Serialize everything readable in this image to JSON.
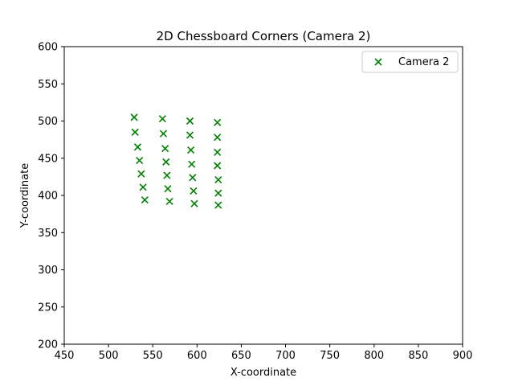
{
  "chart_data": {
    "type": "scatter",
    "title": "2D Chessboard Corners (Camera 2)",
    "xlabel": "X-coordinate",
    "ylabel": "Y-coordinate",
    "xlim": [
      450,
      900
    ],
    "ylim": [
      200,
      600
    ],
    "xticks": [
      450,
      500,
      550,
      600,
      650,
      700,
      750,
      800,
      850,
      900
    ],
    "yticks": [
      200,
      250,
      300,
      350,
      400,
      450,
      500,
      550,
      600
    ],
    "grid": false,
    "legend_position": "top-right",
    "series": [
      {
        "name": "Camera 2",
        "marker": "x",
        "color": "#008000",
        "points": [
          {
            "x": 529,
            "y": 505
          },
          {
            "x": 530,
            "y": 485
          },
          {
            "x": 533,
            "y": 465
          },
          {
            "x": 535,
            "y": 447
          },
          {
            "x": 537,
            "y": 429
          },
          {
            "x": 539,
            "y": 411
          },
          {
            "x": 541,
            "y": 394
          },
          {
            "x": 561,
            "y": 503
          },
          {
            "x": 562,
            "y": 483
          },
          {
            "x": 564,
            "y": 463
          },
          {
            "x": 565,
            "y": 445
          },
          {
            "x": 566,
            "y": 427
          },
          {
            "x": 567,
            "y": 409
          },
          {
            "x": 569,
            "y": 392
          },
          {
            "x": 592,
            "y": 500
          },
          {
            "x": 592,
            "y": 481
          },
          {
            "x": 593,
            "y": 461
          },
          {
            "x": 594,
            "y": 442
          },
          {
            "x": 595,
            "y": 424
          },
          {
            "x": 596,
            "y": 406
          },
          {
            "x": 597,
            "y": 389
          },
          {
            "x": 623,
            "y": 498
          },
          {
            "x": 623,
            "y": 478
          },
          {
            "x": 623,
            "y": 458
          },
          {
            "x": 623,
            "y": 440
          },
          {
            "x": 624,
            "y": 421
          },
          {
            "x": 624,
            "y": 403
          },
          {
            "x": 624,
            "y": 387
          }
        ]
      }
    ]
  }
}
